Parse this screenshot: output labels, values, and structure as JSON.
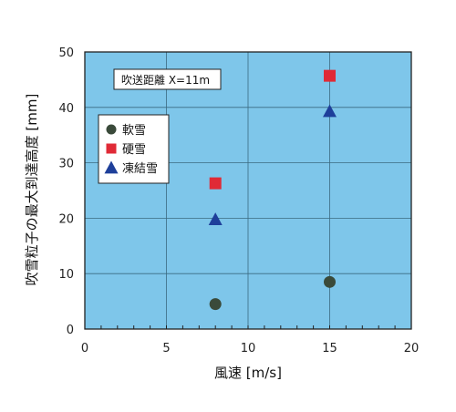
{
  "chart_data": {
    "type": "scatter",
    "title": "",
    "xlabel": "風速 [m/s]",
    "ylabel": "吹雪粒子の最大到達高度 [mm]",
    "xlim": [
      0,
      20
    ],
    "ylim": [
      0,
      50
    ],
    "xticks": [
      0,
      5,
      10,
      15,
      20
    ],
    "yticks": [
      0,
      10,
      20,
      30,
      40,
      50
    ],
    "grid": true,
    "legend_position": "upper-left",
    "annotation": "吹送距離 X=11m",
    "background": "#7ec6ea",
    "series": [
      {
        "name": "軟雪",
        "marker": "circle",
        "color": "#3a4a3a",
        "x": [
          8,
          15
        ],
        "y": [
          4.5,
          8.5
        ]
      },
      {
        "name": "硬雪",
        "marker": "square",
        "color": "#e02a36",
        "x": [
          8,
          15
        ],
        "y": [
          26.3,
          45.7
        ]
      },
      {
        "name": "凍結雪",
        "marker": "triangle",
        "color": "#1e3f9a",
        "x": [
          8,
          15
        ],
        "y": [
          19.8,
          39.3
        ]
      }
    ]
  }
}
